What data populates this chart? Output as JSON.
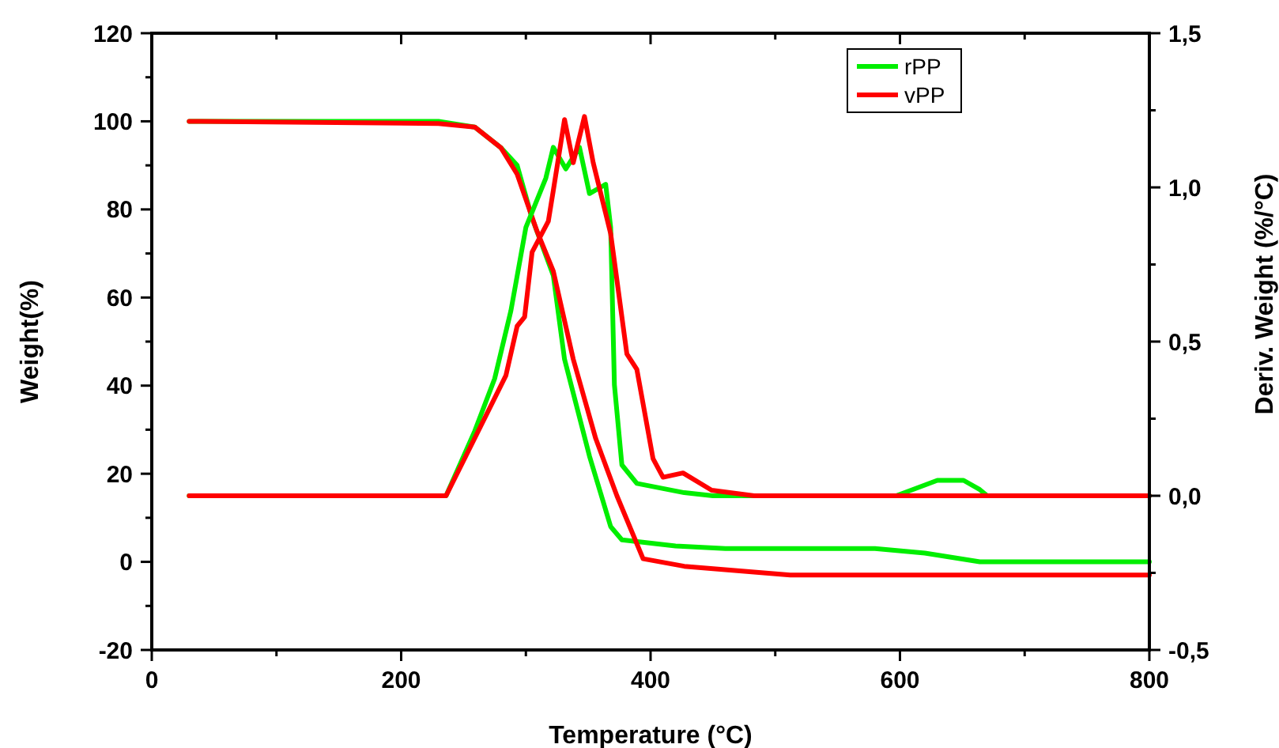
{
  "chart_data": {
    "type": "line",
    "xlabel": "Temperature (°C)",
    "ylabel": "Weight(%)",
    "y2label": "Deriv. Weight (%/°C)",
    "xlim": [
      0,
      800
    ],
    "xticks": [
      0,
      {
        "value": 100,
        "label": null
      },
      200,
      {
        "value": 300,
        "label": null
      },
      400,
      {
        "value": 500,
        "label": null
      },
      600,
      {
        "value": 700,
        "label": null
      },
      800
    ],
    "ylim": [
      -20,
      120
    ],
    "yticks": [
      -20,
      {
        "value": -10,
        "label": null
      },
      0,
      {
        "value": 10,
        "label": null
      },
      20,
      {
        "value": 30,
        "label": null
      },
      40,
      {
        "value": 50,
        "label": null
      },
      60,
      {
        "value": 70,
        "label": null
      },
      80,
      {
        "value": 90,
        "label": null
      },
      100,
      {
        "value": 110,
        "label": null
      },
      120
    ],
    "y2lim": [
      -0.5,
      1.5
    ],
    "y2ticks": [
      {
        "value": -0.5,
        "label": "-0,5"
      },
      {
        "value": -0.25,
        "label": null
      },
      {
        "value": 0,
        "label": "0,0"
      },
      {
        "value": 0.25,
        "label": null
      },
      {
        "value": 0.5,
        "label": "0,5"
      },
      {
        "value": 0.75,
        "label": null
      },
      {
        "value": 1,
        "label": "1,0"
      },
      {
        "value": 1.25,
        "label": null
      },
      {
        "value": 1.5,
        "label": "1,5"
      }
    ],
    "legend": "top right",
    "grid": false,
    "marker": "none",
    "line_style": "solid",
    "series": [
      {
        "name": "rPP",
        "color": "#00ee00",
        "x": [
          30,
          230,
          259,
          280,
          293,
          305,
          322,
          331,
          351,
          368,
          377,
          420,
          460,
          580,
          620,
          664,
          800
        ],
        "values": [
          100,
          100,
          98.7,
          94,
          90,
          78,
          65,
          46,
          24,
          8,
          5,
          3.6,
          3,
          3,
          2,
          0,
          0
        ]
      },
      {
        "name": "vPP",
        "color": "#ff0000",
        "x": [
          30,
          230,
          259,
          280,
          293,
          309,
          322,
          338,
          356,
          373,
          394,
          427,
          512,
          800
        ],
        "values": [
          100,
          99.5,
          98.7,
          94,
          88,
          75,
          66,
          46,
          28,
          15,
          0.7,
          -1,
          -3,
          -3
        ]
      },
      {
        "color": "#00ee00",
        "axis": "y2",
        "x": [
          30,
          236,
          259,
          275,
          288,
          300,
          316,
          322,
          332,
          343,
          351,
          364,
          368,
          371,
          377,
          389,
          427,
          450,
          597,
          630,
          651,
          664,
          670,
          800
        ],
        "values": [
          0,
          0,
          0.21,
          0.38,
          0.6,
          0.87,
          1.03,
          1.13,
          1.06,
          1.13,
          0.98,
          1.01,
          0.87,
          0.36,
          0.1,
          0.04,
          0.01,
          0,
          0,
          0.05,
          0.05,
          0.02,
          0,
          0
        ]
      },
      {
        "color": "#ff0000",
        "axis": "y2",
        "x": [
          30,
          236,
          284,
          293,
          299,
          305,
          318,
          322,
          331,
          338,
          347,
          354,
          368,
          381,
          389,
          402,
          410,
          426,
          449,
          483,
          800
        ],
        "values": [
          0,
          0,
          0.39,
          0.55,
          0.58,
          0.79,
          0.89,
          0.99,
          1.22,
          1.08,
          1.23,
          1.08,
          0.85,
          0.46,
          0.41,
          0.12,
          0.06,
          0.074,
          0.018,
          0,
          0
        ]
      }
    ]
  }
}
